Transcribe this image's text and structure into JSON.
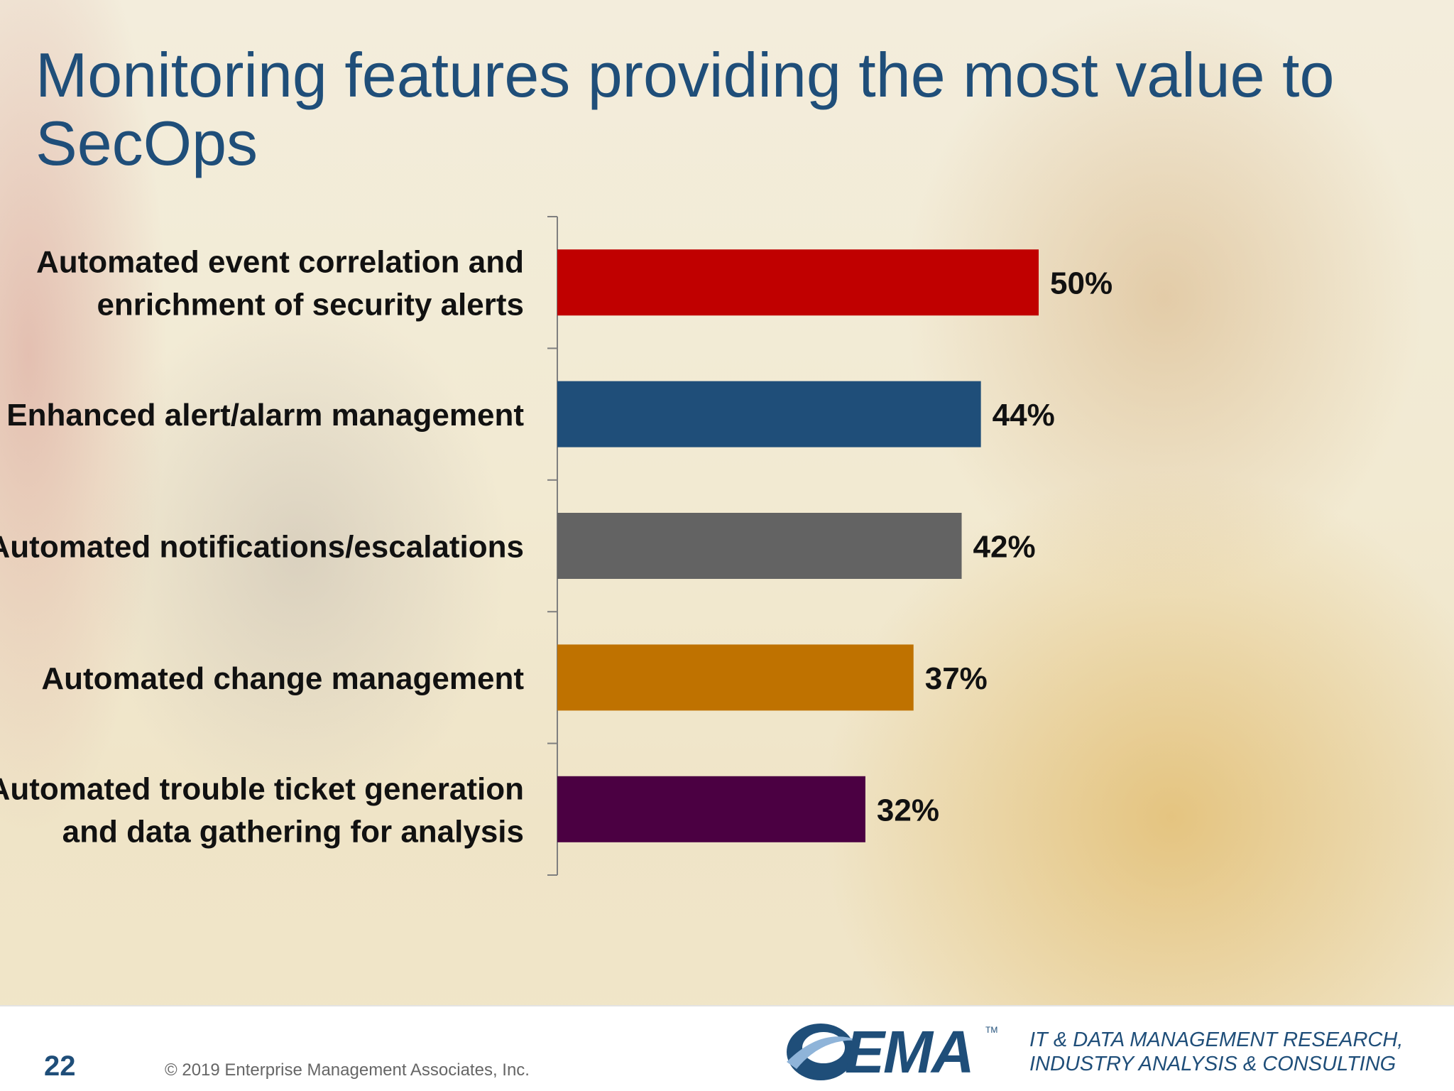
{
  "slide": {
    "title": "Monitoring features providing the most value to SecOps",
    "page_number": "22",
    "copyright": "© 2019 Enterprise Management Associates, Inc.",
    "logo_text": "EMA",
    "logo_tm": "TM",
    "tagline_line1": "IT & DATA MANAGEMENT RESEARCH,",
    "tagline_line2": "INDUSTRY ANALYSIS & CONSULTING"
  },
  "chart_data": {
    "type": "bar",
    "orientation": "horizontal",
    "title": "",
    "xlabel": "",
    "ylabel": "",
    "xlim": [
      0,
      50
    ],
    "grid": false,
    "legend": "none",
    "categories": [
      [
        "Automated event correlation and",
        "enrichment of security alerts"
      ],
      [
        "Enhanced alert/alarm management"
      ],
      [
        "Automated notifications/escalations"
      ],
      [
        "Automated change management"
      ],
      [
        "Automated trouble ticket generation",
        "and data gathering for  analysis"
      ]
    ],
    "values": [
      50,
      44,
      42,
      37,
      32
    ],
    "value_labels": [
      "50%",
      "44%",
      "42%",
      "37%",
      "32%"
    ],
    "colors": [
      "#c00000",
      "#1f4e79",
      "#636363",
      "#bf7200",
      "#4b0042"
    ]
  }
}
